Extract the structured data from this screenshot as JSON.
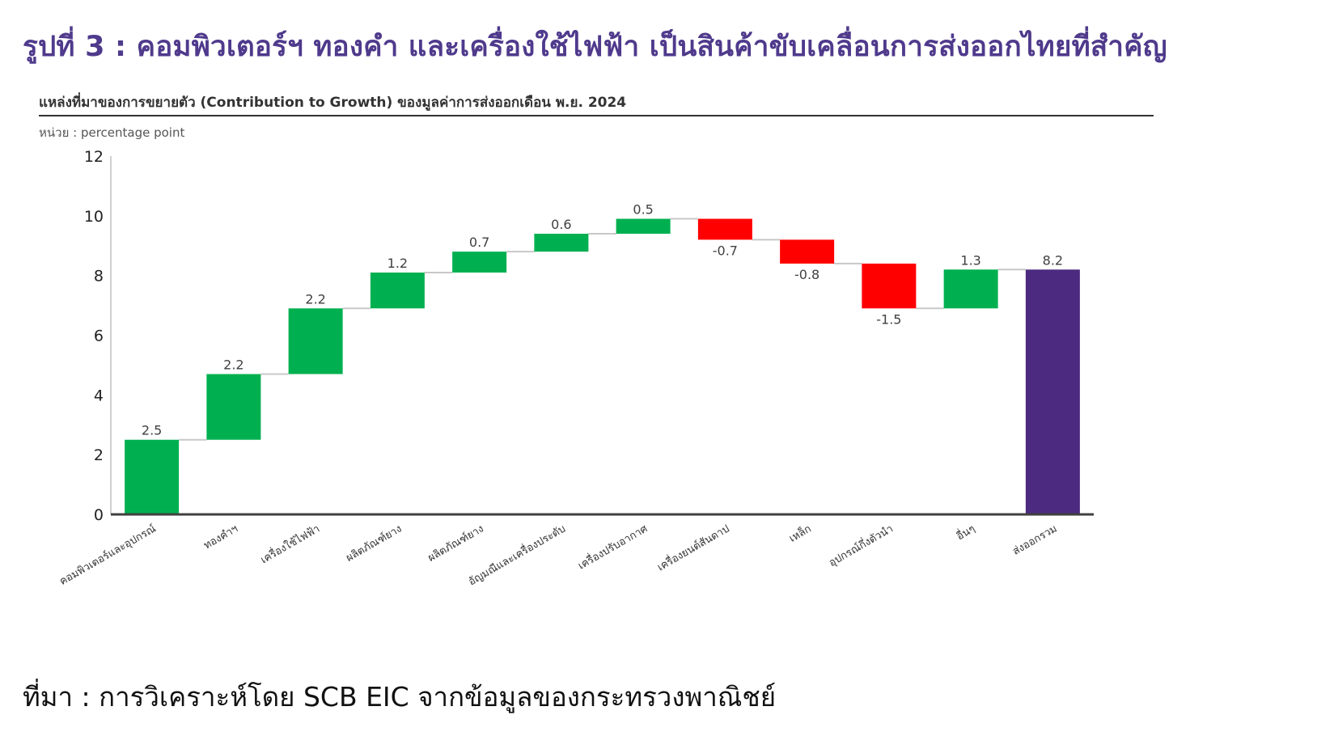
{
  "headline": "รูปที่ 3 : คอมพิวเตอร์ฯ ทองคำ และเครื่องใช้ไฟฟ้า เป็นสินค้าขับเคลื่อนการส่งออกไทยที่สำคัญ",
  "source": "ที่มา : การวิเคราะห์โดย SCB EIC จากข้อมูลของกระทรวงพาณิชย์",
  "colors": {
    "headline": "#4f3a8c",
    "increase": "#00b050",
    "decrease": "#ff0000",
    "total": "#4b2a7f",
    "connector": "#c8c8c8",
    "axis": "#404040"
  },
  "chart_data": {
    "type": "waterfall",
    "title": "แหล่งที่มาของการขยายตัว (Contribution to Growth) ของมูลค่าการส่งออกเดือน พ.ย. 2024",
    "unit_label": "หน่วย : percentage point",
    "xlabel": "",
    "ylabel": "",
    "ylim": [
      0,
      12
    ],
    "yticks": [
      0,
      2,
      4,
      6,
      8,
      10,
      12
    ],
    "grid": false,
    "legend": "none",
    "categories": [
      "คอมพิวเตอร์และอุปกรณ์",
      "ทองคำฯ",
      "เครื่องใช้ไฟฟ้า",
      "ผลิตภัณฑ์ยาง",
      "ผลิตภัณฑ์ยาง",
      "อัญมณีและเครื่องประดับ",
      "เครื่องปรับอากาศ",
      "เครื่องยนต์สันดาป",
      "เหล็ก",
      "อุปกรณ์กึ่งตัวนำ",
      "อื่นๆ",
      "ส่งออกรวม"
    ],
    "values": [
      2.5,
      2.2,
      2.2,
      1.2,
      0.7,
      0.6,
      0.5,
      -0.7,
      -0.8,
      -1.5,
      1.3,
      8.2
    ],
    "labels": [
      "2.5",
      "2.2",
      "2.2",
      "1.2",
      "0.7",
      "0.6",
      "0.5",
      "-0.7",
      "-0.8",
      "-1.5",
      "1.3",
      "8.2"
    ],
    "total_index": 11
  }
}
